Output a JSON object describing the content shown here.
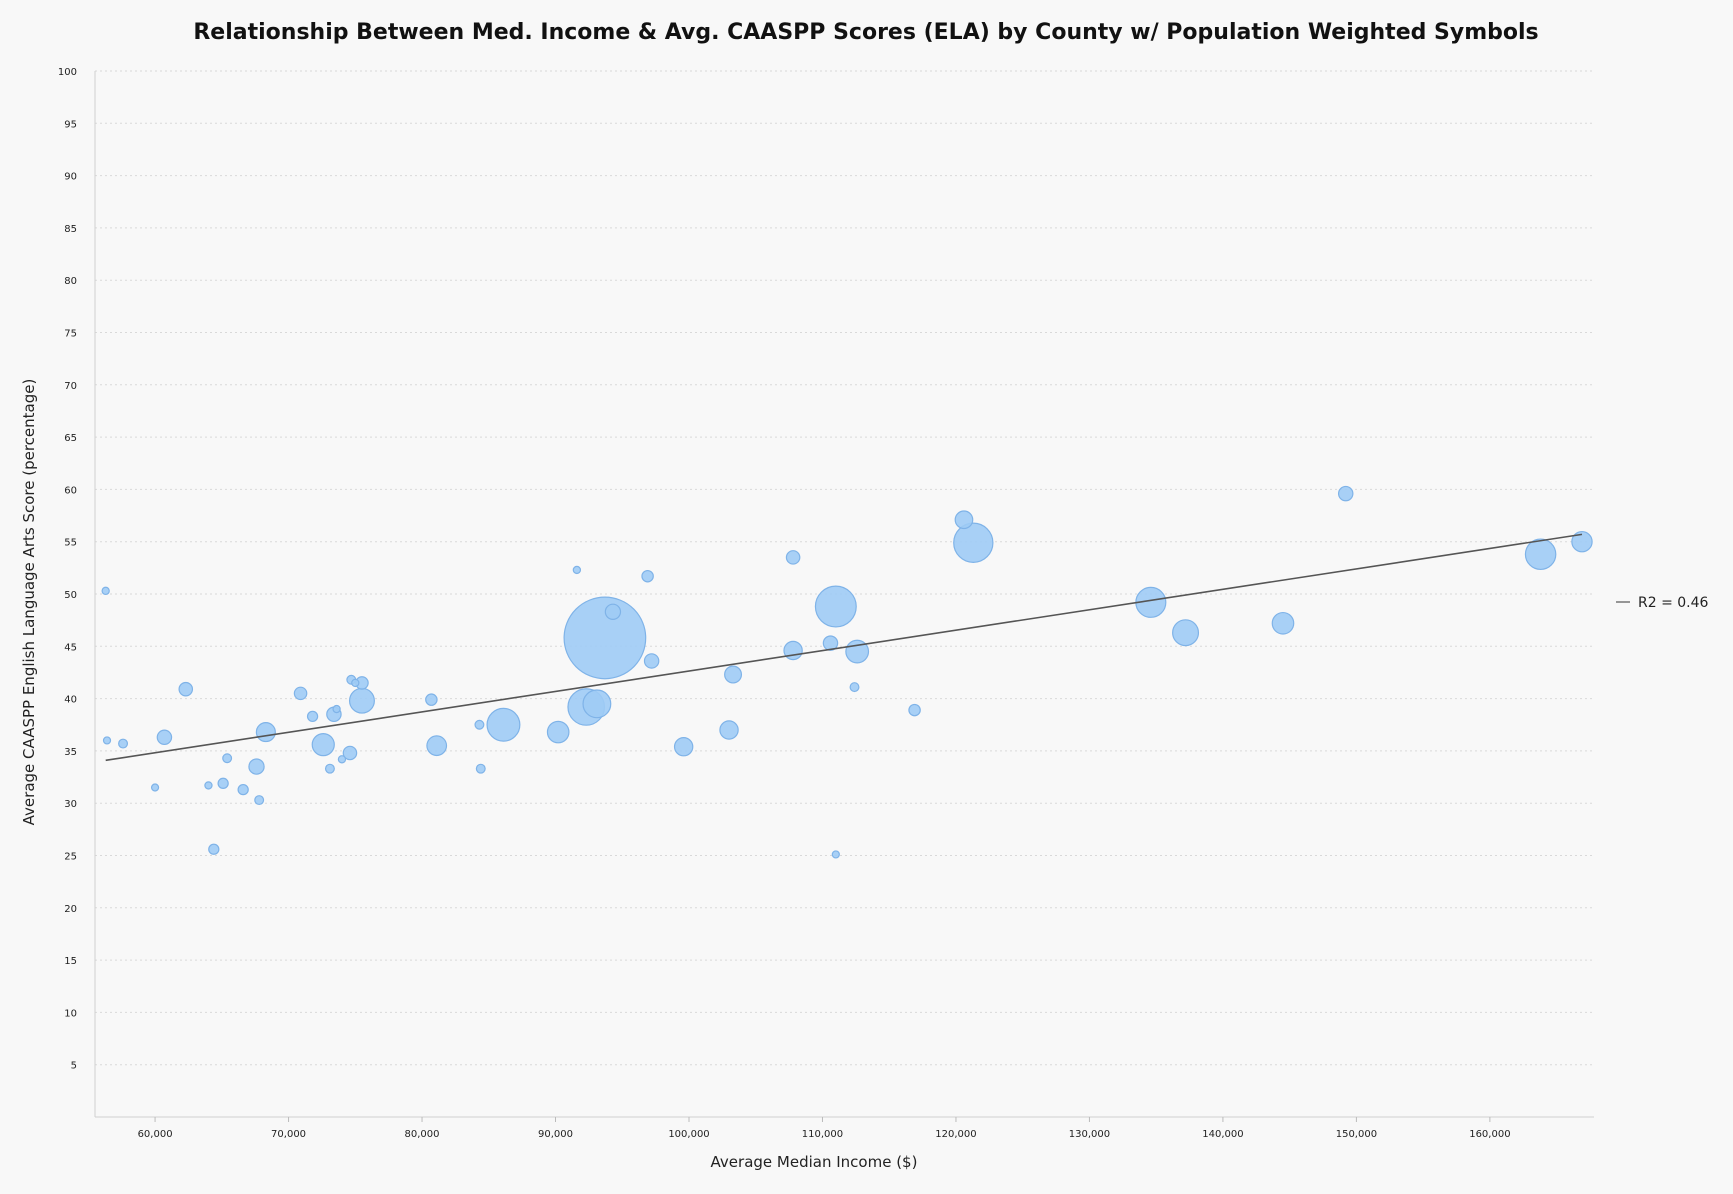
{
  "chart_data": {
    "type": "scatter",
    "title": "Relationship Between Med. Income & Avg. CAASPP Scores (ELA) by County w/ Population Weighted Symbols",
    "xlabel": "Average Median Income ($)",
    "ylabel": "Average CAASPP English Language Arts Score (percentage)",
    "xlim": [
      55500,
      167800
    ],
    "ylim": [
      0,
      100
    ],
    "x_ticks": [
      60000,
      70000,
      80000,
      90000,
      100000,
      110000,
      120000,
      130000,
      140000,
      150000,
      160000
    ],
    "x_tick_labels": [
      "60,000",
      "70,000",
      "80,000",
      "90,000",
      "100,000",
      "110,000",
      "120,000",
      "130,000",
      "140,000",
      "150,000",
      "160,000"
    ],
    "y_ticks": [
      5,
      10,
      15,
      20,
      25,
      30,
      35,
      40,
      45,
      50,
      55,
      60,
      65,
      70,
      75,
      80,
      85,
      90,
      95,
      100
    ],
    "grid": "horizontal dotted",
    "point_color": "#9ecbf5",
    "point_edge_color": "#7fb3e8",
    "series": [
      {
        "points": [
          {
            "x": 56300,
            "y": 50.3,
            "size": 0.2
          },
          {
            "x": 56400,
            "y": 36.0,
            "size": 0.15
          },
          {
            "x": 57600,
            "y": 35.7,
            "size": 0.3
          },
          {
            "x": 60000,
            "y": 31.5,
            "size": 0.1
          },
          {
            "x": 60700,
            "y": 36.3,
            "size": 0.8
          },
          {
            "x": 62300,
            "y": 40.9,
            "size": 0.7
          },
          {
            "x": 64000,
            "y": 31.7,
            "size": 0.2
          },
          {
            "x": 64400,
            "y": 25.6,
            "size": 0.4
          },
          {
            "x": 65100,
            "y": 31.9,
            "size": 0.4
          },
          {
            "x": 65400,
            "y": 34.3,
            "size": 0.3
          },
          {
            "x": 66600,
            "y": 31.3,
            "size": 0.4
          },
          {
            "x": 67600,
            "y": 33.5,
            "size": 0.9
          },
          {
            "x": 67800,
            "y": 30.3,
            "size": 0.3
          },
          {
            "x": 68300,
            "y": 36.8,
            "size": 1.4
          },
          {
            "x": 70900,
            "y": 40.5,
            "size": 0.6
          },
          {
            "x": 71800,
            "y": 38.3,
            "size": 0.4
          },
          {
            "x": 72600,
            "y": 35.6,
            "size": 1.9
          },
          {
            "x": 73100,
            "y": 33.3,
            "size": 0.3
          },
          {
            "x": 73400,
            "y": 38.5,
            "size": 0.8
          },
          {
            "x": 73600,
            "y": 39.0,
            "size": 0.2
          },
          {
            "x": 74000,
            "y": 34.2,
            "size": 0.2
          },
          {
            "x": 74600,
            "y": 34.8,
            "size": 0.7
          },
          {
            "x": 74700,
            "y": 41.8,
            "size": 0.3
          },
          {
            "x": 75000,
            "y": 41.5,
            "size": 0.2
          },
          {
            "x": 75500,
            "y": 41.5,
            "size": 0.6
          },
          {
            "x": 75500,
            "y": 39.8,
            "size": 2.4
          },
          {
            "x": 80700,
            "y": 39.9,
            "size": 0.5
          },
          {
            "x": 81100,
            "y": 35.5,
            "size": 1.5
          },
          {
            "x": 84300,
            "y": 37.5,
            "size": 0.3
          },
          {
            "x": 84400,
            "y": 33.3,
            "size": 0.3
          },
          {
            "x": 86100,
            "y": 37.5,
            "size": 4.2
          },
          {
            "x": 90200,
            "y": 36.8,
            "size": 1.8
          },
          {
            "x": 91600,
            "y": 52.3,
            "size": 0.2
          },
          {
            "x": 92300,
            "y": 39.2,
            "size": 5.2
          },
          {
            "x": 93100,
            "y": 39.5,
            "size": 3.0
          },
          {
            "x": 93700,
            "y": 45.8,
            "size": 26.0
          },
          {
            "x": 94300,
            "y": 48.3,
            "size": 0.9
          },
          {
            "x": 96900,
            "y": 51.7,
            "size": 0.5
          },
          {
            "x": 97200,
            "y": 43.6,
            "size": 0.8
          },
          {
            "x": 99600,
            "y": 35.4,
            "size": 1.3
          },
          {
            "x": 103000,
            "y": 37.0,
            "size": 1.3
          },
          {
            "x": 103300,
            "y": 42.3,
            "size": 1.1
          },
          {
            "x": 107800,
            "y": 53.5,
            "size": 0.7
          },
          {
            "x": 107800,
            "y": 44.6,
            "size": 1.3
          },
          {
            "x": 110600,
            "y": 45.3,
            "size": 0.8
          },
          {
            "x": 111000,
            "y": 25.1,
            "size": 0.08
          },
          {
            "x": 111000,
            "y": 48.8,
            "size": 6.5
          },
          {
            "x": 112400,
            "y": 41.1,
            "size": 0.3
          },
          {
            "x": 112600,
            "y": 44.5,
            "size": 2.0
          },
          {
            "x": 116900,
            "y": 38.9,
            "size": 0.5
          },
          {
            "x": 120600,
            "y": 57.1,
            "size": 1.2
          },
          {
            "x": 121300,
            "y": 54.9,
            "size": 6.0
          },
          {
            "x": 134600,
            "y": 49.2,
            "size": 3.5
          },
          {
            "x": 137200,
            "y": 46.3,
            "size": 2.6
          },
          {
            "x": 144500,
            "y": 47.2,
            "size": 1.8
          },
          {
            "x": 149200,
            "y": 59.6,
            "size": 0.8
          },
          {
            "x": 163800,
            "y": 53.8,
            "size": 3.6
          },
          {
            "x": 166900,
            "y": 55.0,
            "size": 1.6
          }
        ]
      }
    ],
    "trendline": {
      "x": [
        56300,
        166900
      ],
      "y": [
        34.1,
        55.7
      ],
      "color": "#555555"
    },
    "legend": {
      "label": "R2 = 0.46",
      "placement": "right"
    }
  }
}
